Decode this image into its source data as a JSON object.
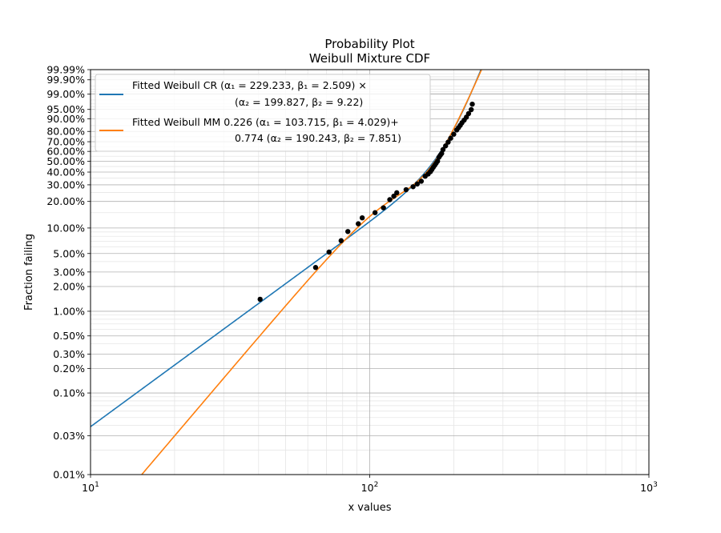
{
  "chart_data": {
    "type": "line",
    "title": "Probability Plot",
    "subtitle": "Weibull Mixture CDF",
    "xlabel": "x values",
    "ylabel": "Fraction failing",
    "x_scale": "log",
    "y_scale": "weibull",
    "xlim": [
      10,
      1000
    ],
    "ylim": [
      0.0001,
      0.9999
    ],
    "grid": true,
    "legend_position": "top-left",
    "x_ticks": [
      {
        "value": 10,
        "base": "10",
        "exp": "1"
      },
      {
        "value": 100,
        "base": "10",
        "exp": "2"
      },
      {
        "value": 1000,
        "base": "10",
        "exp": "3"
      }
    ],
    "y_ticks": [
      {
        "value": 0.0001,
        "label": "0.01%"
      },
      {
        "value": 0.0003,
        "label": "0.03%"
      },
      {
        "value": 0.001,
        "label": "0.10%"
      },
      {
        "value": 0.002,
        "label": "0.20%"
      },
      {
        "value": 0.003,
        "label": "0.30%"
      },
      {
        "value": 0.005,
        "label": "0.50%"
      },
      {
        "value": 0.01,
        "label": "1.00%"
      },
      {
        "value": 0.02,
        "label": "2.00%"
      },
      {
        "value": 0.03,
        "label": "3.00%"
      },
      {
        "value": 0.05,
        "label": "5.00%"
      },
      {
        "value": 0.1,
        "label": "10.00%"
      },
      {
        "value": 0.2,
        "label": "20.00%"
      },
      {
        "value": 0.3,
        "label": "30.00%"
      },
      {
        "value": 0.4,
        "label": "40.00%"
      },
      {
        "value": 0.5,
        "label": "50.00%"
      },
      {
        "value": 0.6,
        "label": "60.00%"
      },
      {
        "value": 0.7,
        "label": "70.00%"
      },
      {
        "value": 0.8,
        "label": "80.00%"
      },
      {
        "value": 0.9,
        "label": "90.00%"
      },
      {
        "value": 0.95,
        "label": "95.00%"
      },
      {
        "value": 0.99,
        "label": "99.00%"
      },
      {
        "value": 0.999,
        "label": "99.90%"
      },
      {
        "value": 0.9999,
        "label": "99.99%"
      }
    ],
    "series": [
      {
        "name": "Fitted Weibull CR",
        "legend_line1": "Fitted Weibull CR  (α₁ = 229.233, β₁ = 2.509) ×",
        "legend_line2": "(α₂ = 199.827, β₂ = 9.22)",
        "model": "competing_risks",
        "alpha1": 229.233,
        "beta1": 2.509,
        "alpha2": 199.827,
        "beta2": 9.22,
        "color": "#1f77b4"
      },
      {
        "name": "Fitted Weibull MM",
        "legend_line1": "Fitted Weibull MM 0.226 (α₁ = 103.715, β₁ = 4.029)+",
        "legend_line2": "0.774 (α₂ = 190.243, β₂ = 7.851)",
        "model": "mixture",
        "p1": 0.226,
        "alpha1": 103.715,
        "beta1": 4.029,
        "alpha2": 190.243,
        "beta2": 7.851,
        "color": "#ff7f0e"
      }
    ],
    "points": {
      "color": "#000000",
      "x": [
        40.5,
        64.0,
        71.5,
        79.0,
        83.5,
        91.0,
        94.0,
        104.5,
        112.0,
        118.0,
        122.0,
        125.0,
        135.0,
        143.0,
        148.0,
        153.0,
        158.0,
        162.0,
        165.0,
        167.0,
        169.0,
        171.0,
        173.0,
        175.0,
        177.0,
        179.0,
        181.0,
        183.0,
        187.0,
        191.0,
        195.0,
        200.0,
        205.0,
        208.0,
        211.0,
        214.0,
        218.0,
        222.0,
        226.0,
        231.0,
        233.0
      ],
      "y": [
        0.014,
        0.034,
        0.052,
        0.071,
        0.091,
        0.112,
        0.131,
        0.15,
        0.17,
        0.209,
        0.228,
        0.248,
        0.267,
        0.287,
        0.306,
        0.326,
        0.365,
        0.384,
        0.404,
        0.423,
        0.443,
        0.462,
        0.482,
        0.501,
        0.54,
        0.56,
        0.579,
        0.618,
        0.657,
        0.696,
        0.735,
        0.774,
        0.813,
        0.833,
        0.852,
        0.872,
        0.891,
        0.91,
        0.93,
        0.949,
        0.969
      ]
    }
  }
}
